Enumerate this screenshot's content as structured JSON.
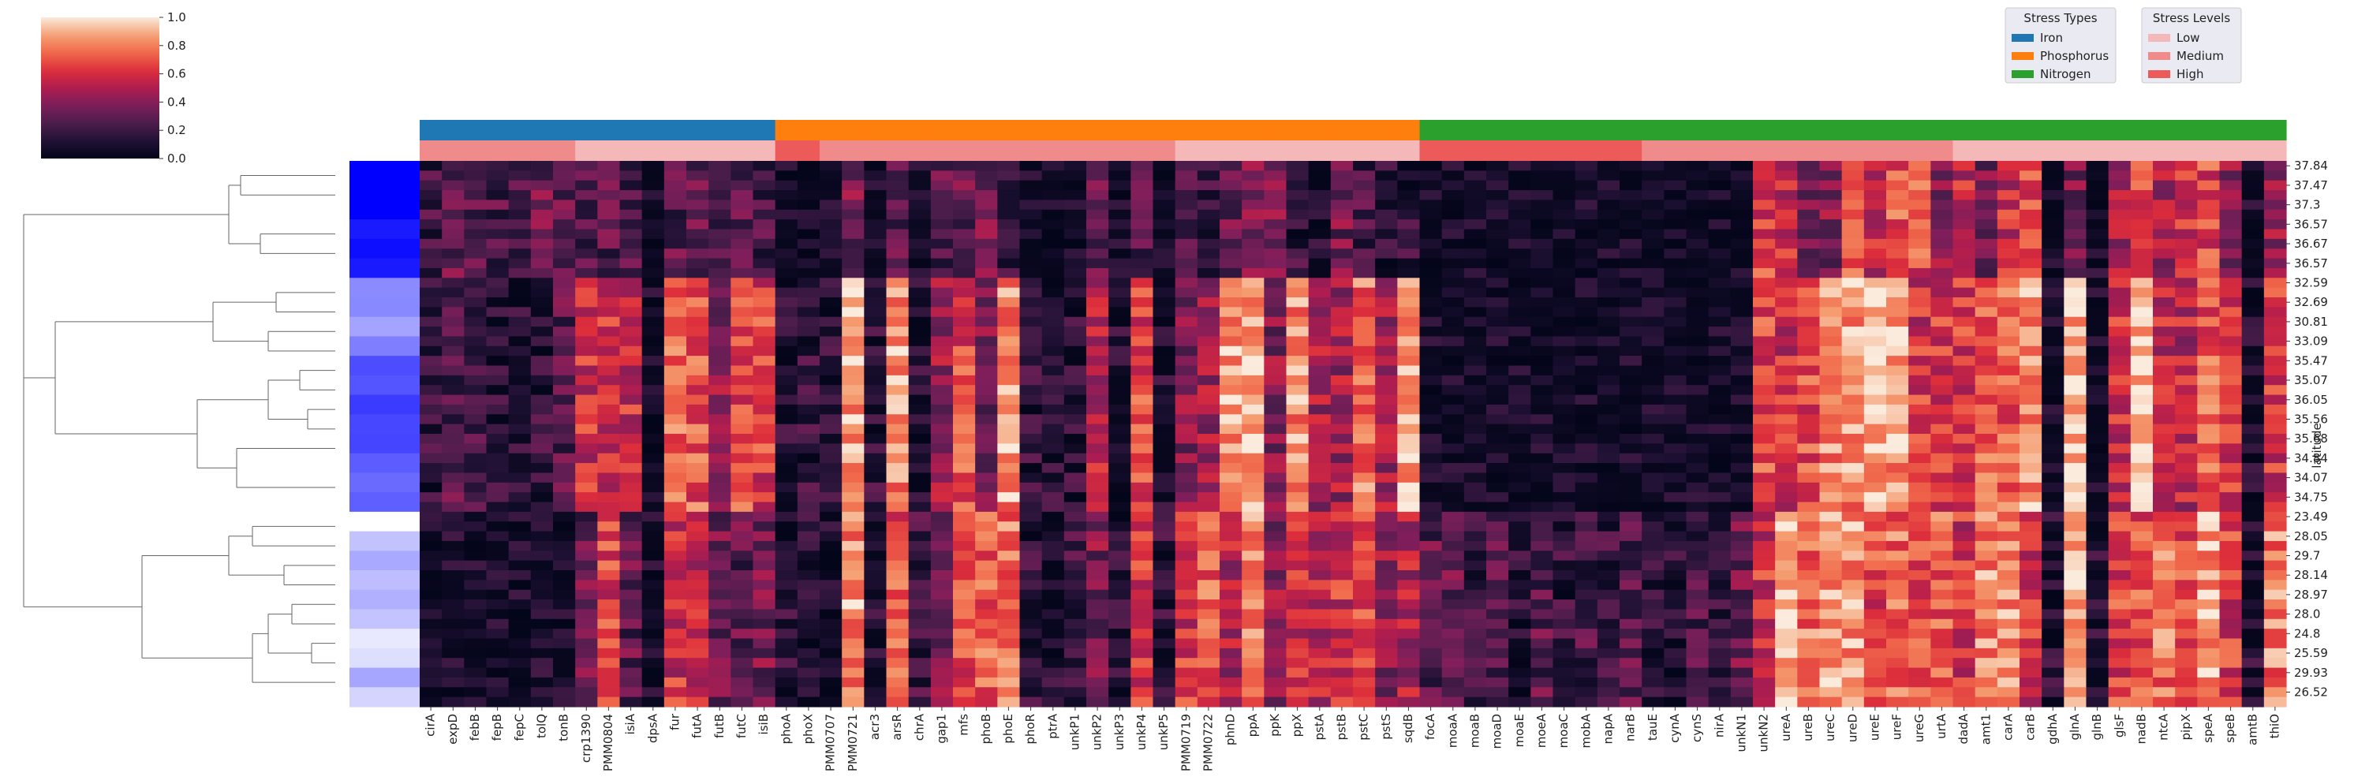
{
  "chart_data": {
    "type": "heatmap",
    "ylabel": "latitude",
    "colorbar": {
      "min": 0.0,
      "max": 1.0,
      "ticks": [
        "0.0",
        "0.2",
        "0.4",
        "0.6",
        "0.8",
        "1.0"
      ]
    },
    "genes": [
      "cirA",
      "expD",
      "febB",
      "fepB",
      "fepC",
      "tolQ",
      "tonB",
      "crp1390",
      "PMM0804",
      "isiA",
      "dpsA",
      "fur",
      "futA",
      "futB",
      "futC",
      "isiB",
      "phoA",
      "phoX",
      "PMM0707",
      "PMM0721",
      "acr3",
      "arsR",
      "chrA",
      "gap1",
      "mfs",
      "phoB",
      "phoE",
      "phoR",
      "ptrA",
      "unkP1",
      "unkP2",
      "unkP3",
      "unkP4",
      "unkP5",
      "PMM0719",
      "PMM0722",
      "phnD",
      "ppA",
      "ppK",
      "ppX",
      "pstA",
      "pstB",
      "pstC",
      "pstS",
      "sqdB",
      "focA",
      "moaA",
      "moaB",
      "moaD",
      "moaE",
      "moeA",
      "moaC",
      "mobA",
      "napA",
      "narB",
      "tauE",
      "cynA",
      "cynS",
      "nirA",
      "unkN1",
      "unkN2",
      "ureA",
      "ureB",
      "ureC",
      "ureD",
      "ureE",
      "ureF",
      "ureG",
      "urtA",
      "dadA",
      "amt1",
      "carA",
      "carB",
      "gdhA",
      "glnA",
      "glnB",
      "glsF",
      "nadB",
      "ntcA",
      "pipX",
      "speA",
      "speB",
      "amtB",
      "thiO"
    ],
    "stress_types": [
      {
        "name": "Iron",
        "color": "#1f77b4",
        "count": 16
      },
      {
        "name": "Phosphorus",
        "color": "#ff7f0e",
        "count": 29
      },
      {
        "name": "Nitrogen",
        "color": "#2ca02c",
        "count": 39
      }
    ],
    "stress_levels": [
      {
        "name": "Low",
        "color": "#f4b8b8"
      },
      {
        "name": "Medium",
        "color": "#f08b8b"
      },
      {
        "name": "High",
        "color": "#ec5a5a"
      }
    ],
    "gene_levels": [
      "Medium",
      "Medium",
      "Medium",
      "Medium",
      "Medium",
      "Medium",
      "Medium",
      "Low",
      "Low",
      "Low",
      "Low",
      "Low",
      "Low",
      "Low",
      "Low",
      "Low",
      "High",
      "High",
      "Medium",
      "Medium",
      "Medium",
      "Medium",
      "Medium",
      "Medium",
      "Medium",
      "Medium",
      "Medium",
      "Medium",
      "Medium",
      "Medium",
      "Medium",
      "Medium",
      "Medium",
      "Medium",
      "Low",
      "Low",
      "Low",
      "Low",
      "Low",
      "Low",
      "Low",
      "Low",
      "Low",
      "Low",
      "Low",
      "High",
      "High",
      "High",
      "High",
      "High",
      "High",
      "High",
      "High",
      "High",
      "High",
      "Medium",
      "Medium",
      "Medium",
      "Medium",
      "Medium",
      "Medium",
      "Medium",
      "Medium",
      "Medium",
      "Medium",
      "Medium",
      "Medium",
      "Medium",
      "Medium",
      "Low",
      "Low",
      "Low",
      "Low",
      "Low",
      "Low",
      "Low",
      "Low",
      "Low",
      "Low",
      "Low",
      "Low",
      "Low",
      "Low",
      "Low"
    ],
    "latitudes": [
      "37.84",
      "",
      "37.47",
      "",
      "37.3",
      "",
      "36.57",
      "",
      "36.67",
      "",
      "36.57",
      "",
      "32.59",
      "",
      "32.69",
      "",
      "30.81",
      "",
      "33.09",
      "",
      "35.47",
      "",
      "35.07",
      "",
      "36.05",
      "",
      "35.56",
      "",
      "35.68",
      "",
      "34.84",
      "",
      "34.07",
      "",
      "34.75",
      "",
      "23.49",
      "",
      "28.05",
      "",
      "29.7",
      "",
      "28.14",
      "",
      "28.97",
      "",
      "28.0",
      "",
      "24.8",
      "",
      "25.59",
      "",
      "29.93",
      "",
      "26.52"
    ],
    "row_colors": [
      "#0000ff",
      "#0000ff",
      "#0000ff",
      "#0000ff",
      "#0000ff",
      "#0000ff",
      "#1a1aff",
      "#1a1aff",
      "#0d0dff",
      "#0d0dff",
      "#1a1aff",
      "#1a1aff",
      "#8b8bff",
      "#8b8bff",
      "#8888ff",
      "#8888ff",
      "#a4a4ff",
      "#a4a4ff",
      "#7e7eff",
      "#7e7eff",
      "#4d4dff",
      "#4d4dff",
      "#5555ff",
      "#5555ff",
      "#3b3bff",
      "#3b3bff",
      "#4747ff",
      "#4747ff",
      "#4545ff",
      "#4545ff",
      "#5d5dff",
      "#5d5dff",
      "#6a6aff",
      "#6a6aff",
      "#5f5fff",
      "#5f5fff",
      "#ffffff",
      "#ffffff",
      "#c2c2ff",
      "#c2c2ff",
      "#a9a9ff",
      "#a9a9ff",
      "#bdbdff",
      "#bdbdff",
      "#b0b0ff",
      "#b0b0ff",
      "#c3c3ff",
      "#c3c3ff",
      "#e8e8ff",
      "#e8e8ff",
      "#dedeff",
      "#dedeff",
      "#a6a6ff",
      "#a6a6ff",
      "#d4d4ff",
      "#d4d4ff"
    ],
    "n_rows": 56
  }
}
